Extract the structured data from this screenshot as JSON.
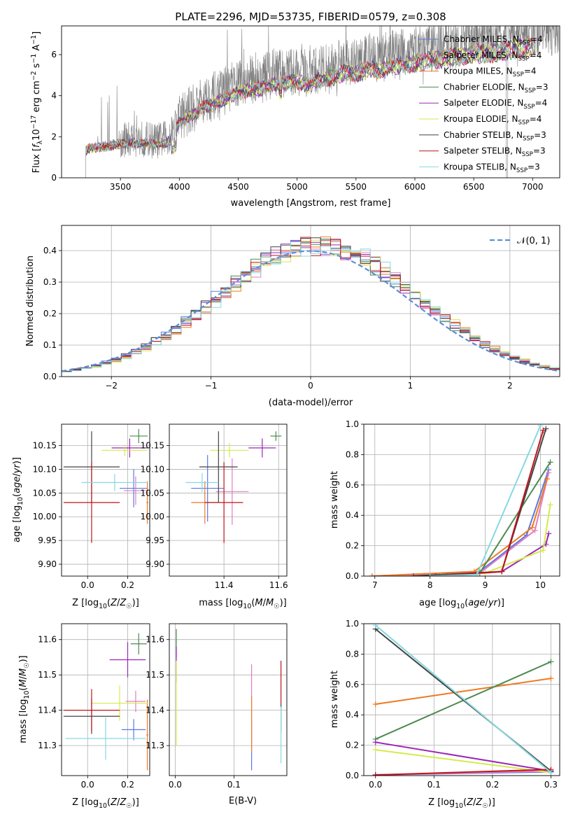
{
  "figure_title": "PLATE=2296, MJD=53735, FIBERID=0579, z=0.308",
  "colors": {
    "Chabrier MILES": "#5a78e6",
    "Salpeter MILES": "#e17fbf",
    "Kroupa MILES": "#ee7a24",
    "Chabrier ELODIE": "#4c8a4f",
    "Salpeter ELODIE": "#9b27b5",
    "Kroupa ELODIE": "#d6ea4c",
    "Chabrier STELIB": "#444444",
    "Salpeter STELIB": "#c0141c",
    "Kroupa STELIB": "#86d9e0",
    "data": "#808080",
    "normal": "#5b8fd6"
  },
  "chart_data": [
    {
      "id": "spectrum",
      "type": "line",
      "title": "PLATE=2296, MJD=53735, FIBERID=0579, z=0.308",
      "xlabel": "wavelength [Angstrom, rest frame]",
      "ylabel": "Flux [f_λ 10^-17 erg cm^-2 s^-1 A^-1]",
      "xlim": [
        3000,
        7230
      ],
      "ylim": [
        0,
        7.4
      ],
      "xticks": [
        3500,
        4000,
        4500,
        5000,
        5500,
        6000,
        6500,
        7000
      ],
      "yticks": [
        0,
        2,
        4,
        6
      ],
      "legend": "top-right",
      "continuum_x": [
        3200,
        3250,
        3300,
        3400,
        3500,
        3600,
        3700,
        3800,
        3900,
        4000,
        4100,
        4200,
        4300,
        4400,
        4500,
        4600,
        4700,
        4800,
        4900,
        5000,
        5100,
        5200,
        5300,
        5400,
        5500,
        5600,
        5700,
        5800,
        5900,
        6000,
        6100,
        6200,
        6300,
        6400,
        6500,
        6600,
        6700,
        6800,
        6900,
        7000
      ],
      "continuum_y": [
        1.45,
        1.6,
        1.6,
        1.7,
        1.8,
        1.9,
        1.9,
        1.8,
        1.9,
        3.0,
        3.3,
        3.8,
        4.0,
        4.3,
        4.6,
        4.8,
        4.8,
        5.1,
        5.1,
        5.2,
        5.0,
        5.3,
        5.4,
        5.7,
        5.6,
        5.9,
        5.8,
        6.0,
        6.1,
        6.2,
        6.3,
        6.4,
        6.5,
        6.6,
        6.7,
        6.7,
        6.8,
        6.9,
        7.0,
        7.1
      ],
      "series": [
        {
          "name": "Chabrier MILES, N_SSP=4"
        },
        {
          "name": "Salpeter MILES, N_SSP=4"
        },
        {
          "name": "Kroupa MILES, N_SSP=4"
        },
        {
          "name": "Chabrier ELODIE, N_SSP=3"
        },
        {
          "name": "Salpeter ELODIE, N_SSP=4"
        },
        {
          "name": "Kroupa ELODIE, N_SSP=4"
        },
        {
          "name": "Chabrier STELIB, N_SSP=3"
        },
        {
          "name": "Salpeter STELIB, N_SSP=3"
        },
        {
          "name": "Kroupa STELIB, N_SSP=3"
        }
      ]
    },
    {
      "id": "residuals",
      "type": "line",
      "xlabel": "(data-model)/error",
      "ylabel": "Normed distribution",
      "xlim": [
        -2.5,
        2.5
      ],
      "ylim": [
        0,
        0.48
      ],
      "xticks": [
        -2,
        -1,
        0,
        1,
        2
      ],
      "yticks": [
        0.0,
        0.1,
        0.2,
        0.3,
        0.4
      ],
      "legend": "top-right",
      "legend_label": "𝒩(0, 1)",
      "bin_width": 0.1,
      "grid": true
    },
    {
      "id": "age_vs_Z",
      "type": "scatter",
      "xlabel": "Z [log10(Z/Z☉)]",
      "ylabel": "age  [log10(age/yr)]",
      "xlim": [
        -0.13,
        0.31
      ],
      "ylim": [
        9.875,
        10.195
      ],
      "xticks": [
        0.0,
        0.2
      ],
      "yticks": [
        9.9,
        9.95,
        10.0,
        10.05,
        10.1,
        10.15
      ],
      "grid": true,
      "points": [
        {
          "s": "Chabrier MILES",
          "x": 0.23,
          "y": 10.06,
          "xerr": 0.07,
          "yerr": 0.04
        },
        {
          "s": "Salpeter MILES",
          "x": 0.24,
          "y": 10.055,
          "xerr": 0.06,
          "yerr": 0.03
        },
        {
          "s": "Kroupa MILES",
          "x": 0.298,
          "y": 10.03,
          "xerr": 0.005,
          "yerr": 0.045
        },
        {
          "s": "Chabrier ELODIE",
          "x": 0.255,
          "y": 10.17,
          "xerr": 0.045,
          "yerr": 0.015
        },
        {
          "s": "Salpeter ELODIE",
          "x": 0.21,
          "y": 10.145,
          "xerr": 0.09,
          "yerr": 0.02
        },
        {
          "s": "Kroupa ELODIE",
          "x": 0.185,
          "y": 10.14,
          "xerr": 0.115,
          "yerr": 0.012
        },
        {
          "s": "Chabrier STELIB",
          "x": 0.02,
          "y": 10.105,
          "xerr": 0.14,
          "yerr": 0.075
        },
        {
          "s": "Salpeter STELIB",
          "x": 0.02,
          "y": 10.03,
          "xerr": 0.14,
          "yerr": 0.085
        },
        {
          "s": "Kroupa STELIB",
          "x": 0.135,
          "y": 10.072,
          "xerr": 0.165,
          "yerr": 0.018
        }
      ]
    },
    {
      "id": "age_vs_mass",
      "type": "scatter",
      "xlabel": "mass [log10(M/M☉)]",
      "ylabel": "",
      "xlim": [
        11.2,
        11.63
      ],
      "ylim": [
        9.875,
        10.195
      ],
      "xticks": [
        11.4,
        11.6
      ],
      "yticks": [
        9.9,
        9.95,
        10.0,
        10.05,
        10.1,
        10.15
      ],
      "grid": true,
      "points": [
        {
          "s": "Chabrier MILES",
          "x": 11.34,
          "y": 10.06,
          "xerr": 0.06,
          "yerr": 0.07
        },
        {
          "s": "Salpeter MILES",
          "x": 11.43,
          "y": 10.053,
          "xerr": 0.06,
          "yerr": 0.07
        },
        {
          "s": "Kroupa MILES",
          "x": 11.33,
          "y": 10.03,
          "xerr": 0.05,
          "yerr": 0.045
        },
        {
          "s": "Chabrier ELODIE",
          "x": 11.59,
          "y": 10.17,
          "xerr": 0.02,
          "yerr": 0.01
        },
        {
          "s": "Salpeter ELODIE",
          "x": 11.54,
          "y": 10.145,
          "xerr": 0.05,
          "yerr": 0.02
        },
        {
          "s": "Kroupa ELODIE",
          "x": 11.42,
          "y": 10.14,
          "xerr": 0.07,
          "yerr": 0.015
        },
        {
          "s": "Chabrier STELIB",
          "x": 11.38,
          "y": 10.105,
          "xerr": 0.07,
          "yerr": 0.075
        },
        {
          "s": "Salpeter STELIB",
          "x": 11.4,
          "y": 10.03,
          "xerr": 0.07,
          "yerr": 0.085
        },
        {
          "s": "Kroupa STELIB",
          "x": 11.32,
          "y": 10.072,
          "xerr": 0.06,
          "yerr": 0.02
        }
      ]
    },
    {
      "id": "mass_weight_vs_age",
      "type": "line",
      "xlabel": "age  [log10(age/yr)]",
      "ylabel": "mass weight",
      "xlim": [
        6.8,
        10.35
      ],
      "ylim": [
        0,
        1.0
      ],
      "xticks": [
        7,
        8,
        9,
        10
      ],
      "yticks": [
        0.0,
        0.2,
        0.4,
        0.6,
        0.8,
        1.0
      ],
      "grid": true,
      "series": [
        {
          "s": "Chabrier MILES",
          "x": [
            6.95,
            8.9,
            9.75,
            10.15
          ],
          "y": [
            0.0,
            0.03,
            0.27,
            0.7
          ]
        },
        {
          "s": "Salpeter MILES",
          "x": [
            6.95,
            8.9,
            9.9,
            10.15
          ],
          "y": [
            0.0,
            0.02,
            0.3,
            0.68
          ]
        },
        {
          "s": "Kroupa MILES",
          "x": [
            6.95,
            8.8,
            9.85,
            10.12
          ],
          "y": [
            0.0,
            0.03,
            0.32,
            0.64
          ]
        },
        {
          "s": "Chabrier ELODIE",
          "x": [
            8.2,
            8.9,
            10.18
          ],
          "y": [
            0.0,
            0.02,
            0.75
          ]
        },
        {
          "s": "Salpeter ELODIE",
          "x": [
            8.3,
            9.3,
            10.1,
            10.15
          ],
          "y": [
            0.0,
            0.03,
            0.21,
            0.28
          ]
        },
        {
          "s": "Kroupa ELODIE",
          "x": [
            8.2,
            9.0,
            10.05,
            10.18
          ],
          "y": [
            0.0,
            0.02,
            0.17,
            0.47
          ]
        },
        {
          "s": "Chabrier STELIB",
          "x": [
            7.7,
            9.3,
            10.1
          ],
          "y": [
            0.0,
            0.03,
            0.97
          ]
        },
        {
          "s": "Salpeter STELIB",
          "x": [
            8.1,
            9.3,
            10.05
          ],
          "y": [
            0.0,
            0.03,
            0.96
          ]
        },
        {
          "s": "Kroupa STELIB",
          "x": [
            8.0,
            8.85,
            10.0
          ],
          "y": [
            0.0,
            0.01,
            0.99
          ]
        }
      ]
    },
    {
      "id": "mass_vs_Z",
      "type": "scatter",
      "xlabel": "Z [log10(Z/Z☉)]",
      "ylabel": "mass [log10(M/M☉)]",
      "xlim": [
        -0.13,
        0.31
      ],
      "ylim": [
        11.215,
        11.645
      ],
      "xticks": [
        0.0,
        0.2
      ],
      "yticks": [
        11.3,
        11.4,
        11.5,
        11.6
      ],
      "grid": true,
      "points": [
        {
          "s": "Chabrier MILES",
          "x": 0.23,
          "y": 11.345,
          "xerr": 0.06,
          "yerr": 0.03
        },
        {
          "s": "Salpeter MILES",
          "x": 0.24,
          "y": 11.425,
          "xerr": 0.05,
          "yerr": 0.03
        },
        {
          "s": "Kroupa MILES",
          "x": 0.298,
          "y": 11.33,
          "xerr": 0.005,
          "yerr": 0.1
        },
        {
          "s": "Chabrier ELODIE",
          "x": 0.255,
          "y": 11.588,
          "xerr": 0.04,
          "yerr": 0.03
        },
        {
          "s": "Salpeter ELODIE",
          "x": 0.2,
          "y": 11.543,
          "xerr": 0.09,
          "yerr": 0.05
        },
        {
          "s": "Kroupa ELODIE",
          "x": 0.16,
          "y": 11.42,
          "xerr": 0.14,
          "yerr": 0.05
        },
        {
          "s": "Chabrier STELIB",
          "x": 0.02,
          "y": 11.383,
          "xerr": 0.14,
          "yerr": 0.05
        },
        {
          "s": "Salpeter STELIB",
          "x": 0.02,
          "y": 11.4,
          "xerr": 0.14,
          "yerr": 0.06
        },
        {
          "s": "Kroupa STELIB",
          "x": 0.09,
          "y": 11.32,
          "xerr": 0.2,
          "yerr": 0.06
        }
      ]
    },
    {
      "id": "mass_vs_ebv",
      "type": "scatter",
      "xlabel": "E(B-V)",
      "ylabel": "",
      "xlim": [
        -0.01,
        0.19
      ],
      "ylim": [
        11.215,
        11.645
      ],
      "xticks": [
        0.0,
        0.1
      ],
      "yticks": [
        11.3,
        11.4,
        11.5,
        11.6
      ],
      "grid": true,
      "points": [
        {
          "s": "Chabrier MILES",
          "x": 0.13,
          "y": 11.3,
          "xerr": 0.0,
          "yerr": 0.07
        },
        {
          "s": "Salpeter MILES",
          "x": 0.13,
          "y": 11.45,
          "xerr": 0.0,
          "yerr": 0.08
        },
        {
          "s": "Kroupa MILES",
          "x": 0.13,
          "y": 11.36,
          "xerr": 0.0,
          "yerr": 0.08
        },
        {
          "s": "Chabrier ELODIE",
          "x": 0.002,
          "y": 11.59,
          "xerr": 0.0,
          "yerr": 0.04
        },
        {
          "s": "Salpeter ELODIE",
          "x": 0.002,
          "y": 11.53,
          "xerr": 0.0,
          "yerr": 0.05
        },
        {
          "s": "Kroupa ELODIE",
          "x": 0.002,
          "y": 11.42,
          "xerr": 0.0,
          "yerr": 0.12
        },
        {
          "s": "Chabrier STELIB",
          "x": 0.18,
          "y": 11.38,
          "xerr": 0.0,
          "yerr": 0.04
        },
        {
          "s": "Salpeter STELIB",
          "x": 0.18,
          "y": 11.48,
          "xerr": 0.0,
          "yerr": 0.06
        },
        {
          "s": "Kroupa STELIB",
          "x": 0.18,
          "y": 11.33,
          "xerr": 0.0,
          "yerr": 0.08
        }
      ]
    },
    {
      "id": "mass_weight_vs_Z",
      "type": "line",
      "xlabel": "Z [log10(Z/Z☉)]",
      "ylabel": "mass weight",
      "xlim": [
        -0.02,
        0.315
      ],
      "ylim": [
        0,
        1.0
      ],
      "xticks": [
        0.0,
        0.1,
        0.2,
        0.3
      ],
      "yticks": [
        0.0,
        0.2,
        0.4,
        0.6,
        0.8,
        1.0
      ],
      "grid": true,
      "series": [
        {
          "s": "Chabrier MILES",
          "x": [
            0.0,
            0.3
          ],
          "y": [
            0.005,
            0.025
          ]
        },
        {
          "s": "Salpeter MILES",
          "x": [
            0.0,
            0.3
          ],
          "y": [
            0.005,
            0.03
          ]
        },
        {
          "s": "Kroupa MILES",
          "x": [
            0.0,
            0.3
          ],
          "y": [
            0.47,
            0.64
          ]
        },
        {
          "s": "Chabrier ELODIE",
          "x": [
            0.0,
            0.3
          ],
          "y": [
            0.24,
            0.75
          ]
        },
        {
          "s": "Salpeter ELODIE",
          "x": [
            0.0,
            0.3
          ],
          "y": [
            0.22,
            0.03
          ]
        },
        {
          "s": "Kroupa ELODIE",
          "x": [
            0.0,
            0.3
          ],
          "y": [
            0.17,
            0.02
          ]
        },
        {
          "s": "Chabrier STELIB",
          "x": [
            0.0,
            0.3
          ],
          "y": [
            0.965,
            0.03
          ]
        },
        {
          "s": "Salpeter STELIB",
          "x": [
            0.0,
            0.3
          ],
          "y": [
            0.004,
            0.04
          ]
        },
        {
          "s": "Kroupa STELIB",
          "x": [
            0.0,
            0.3
          ],
          "y": [
            0.99,
            0.02
          ]
        }
      ]
    }
  ]
}
